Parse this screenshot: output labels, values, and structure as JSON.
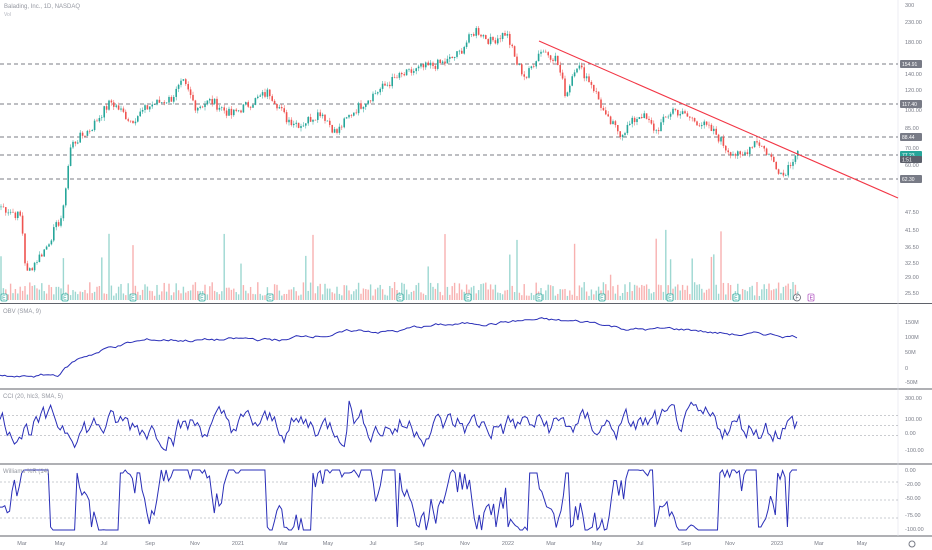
{
  "header": {
    "symbol_title": "Balading, Inc., 1D, NASDAQ",
    "sub_label": "Vol"
  },
  "indicators": {
    "obv_label": "OBV (SMA, 9)",
    "cci_label": "CCI (20, hlc3, SMA, 5)",
    "wr_label": "Williams %R (14)"
  },
  "colors": {
    "up": "#26a69a",
    "down": "#ef5350",
    "trendline": "#f23645",
    "indicator": "#2a2fb8",
    "grid_dash": "#50535e",
    "price_tag": "#26a69a",
    "level_tag": "#787b86"
  },
  "chart_data": [
    {
      "type": "candlestick",
      "x_axis_labels": [
        "Mar",
        "May",
        "Jul",
        "Sep",
        "Nov",
        "2021",
        "Mar",
        "May",
        "Jul",
        "Sep",
        "Nov",
        "2022",
        "Mar",
        "May",
        "Jul",
        "Sep",
        "Nov",
        "2023",
        "Mar",
        "May"
      ],
      "y_axis_labels": [
        "300",
        "230.00",
        "180.00",
        "140.00",
        "120.00",
        "100.00",
        "85.00",
        "70.00",
        "60.00",
        "55.00",
        "47.50",
        "41.50",
        "36.50",
        "32.50",
        "29.00",
        "25.50"
      ],
      "horizontal_levels": [
        154.91,
        117.4,
        88.44,
        77.23,
        62.3
      ],
      "level_tag_labels": [
        "154.91",
        "117.40",
        "88.44",
        "77.23",
        "62.30"
      ],
      "last_price": "77.23",
      "last_price_sub": "1:51",
      "earnings_markers": [
        "E",
        "E",
        "E",
        "E",
        "E",
        "E",
        "E",
        "E",
        "E",
        "E",
        "E",
        "E"
      ],
      "dividend_marker": "F",
      "trendline": {
        "from": "2022-02",
        "to": "2023-05",
        "description": "descending resistance"
      },
      "scale": "log"
    },
    {
      "type": "line",
      "name": "OBV (SMA, 9)",
      "y_axis_labels": [
        "150M",
        "100M",
        "50M",
        "0",
        "-50M"
      ]
    },
    {
      "type": "line",
      "name": "CCI (20, hlc3, SMA, 5)",
      "y_axis_labels": [
        "300.00",
        "100.00",
        "0.00",
        "-100.00"
      ]
    },
    {
      "type": "line",
      "name": "Williams %R (14)",
      "y_axis_labels": [
        "0.00",
        "-20.00",
        "-50.00",
        "-75.00",
        "-100.00"
      ]
    }
  ]
}
